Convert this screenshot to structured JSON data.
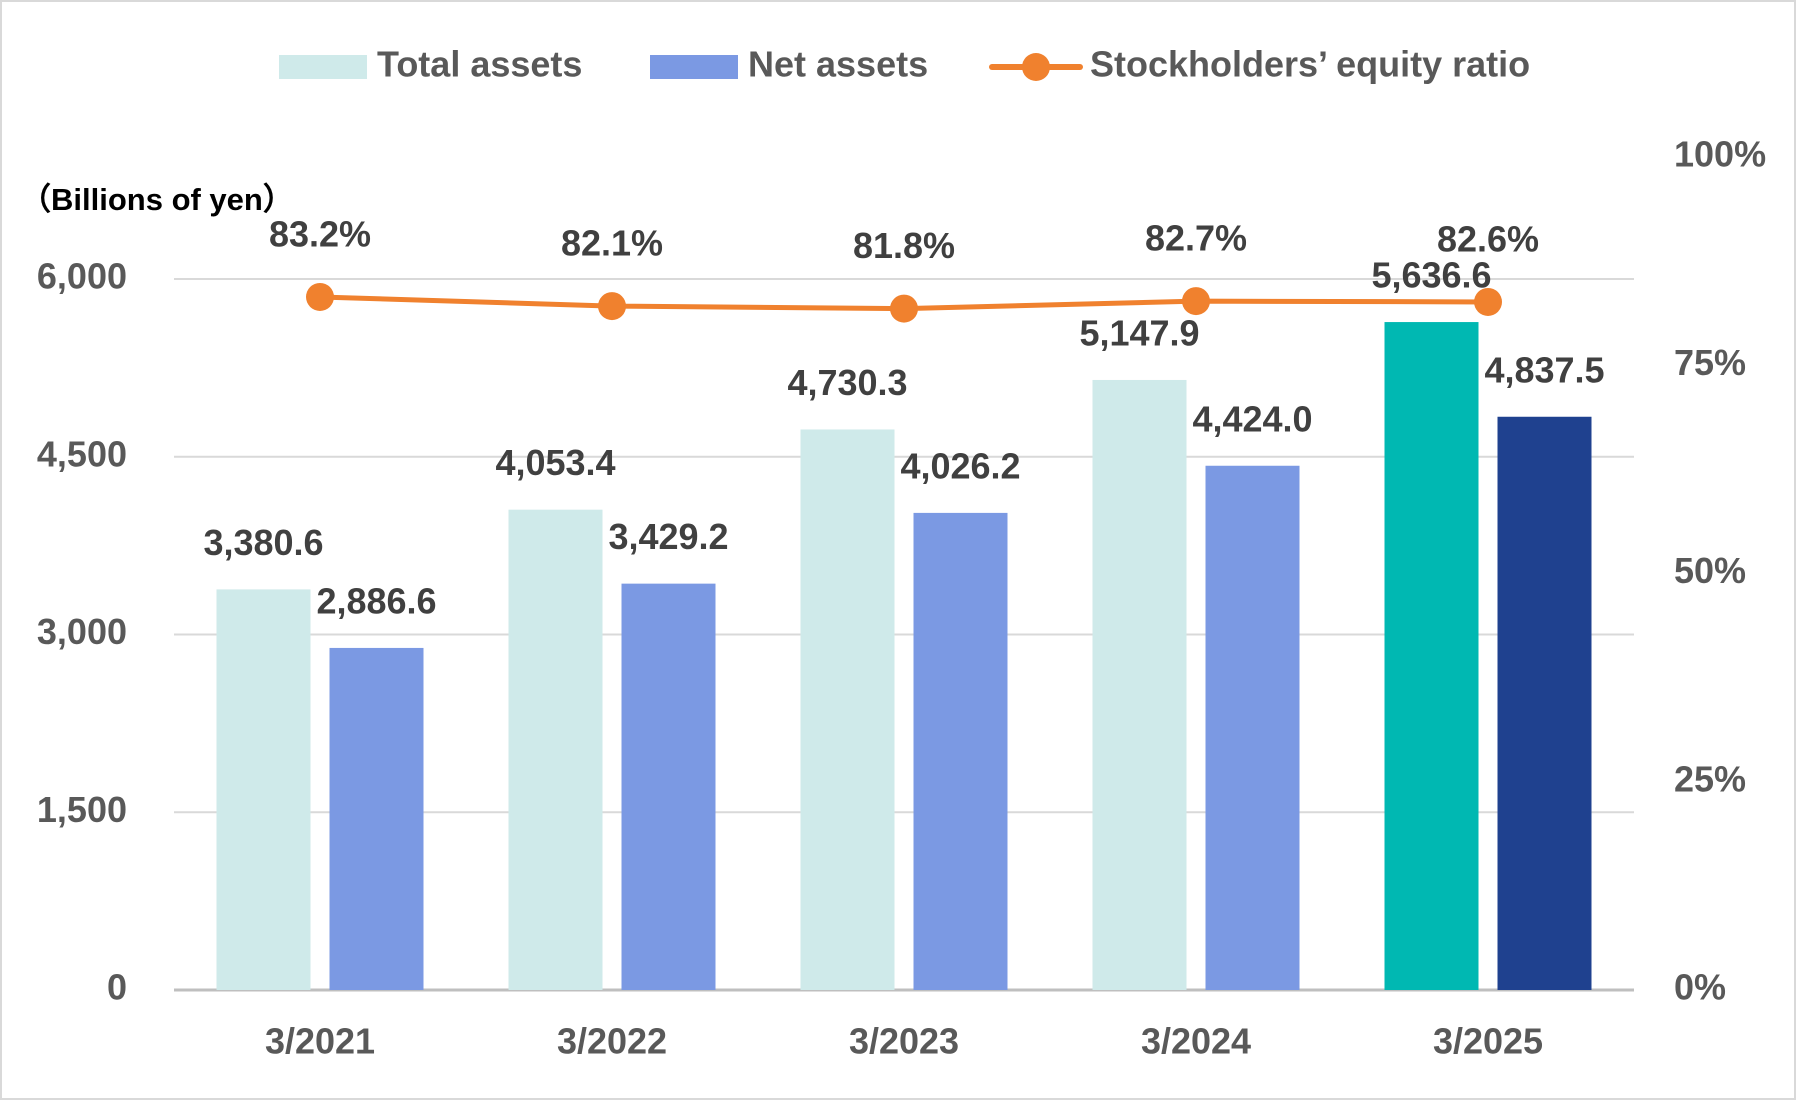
{
  "chart_data": {
    "type": "bar",
    "categories": [
      "3/2021",
      "3/2022",
      "3/2023",
      "3/2024",
      "3/2025"
    ],
    "series": [
      {
        "name": "Total assets",
        "type": "bar",
        "axis": "left",
        "values": [
          3380.6,
          4053.4,
          4730.3,
          5147.9,
          5636.6
        ],
        "labels": [
          "3,380.6",
          "4,053.4",
          "4,730.3",
          "5,147.9",
          "5,636.6"
        ],
        "color": "#CFEAEA",
        "highlight_color": "#00B8B2"
      },
      {
        "name": "Net assets",
        "type": "bar",
        "axis": "left",
        "values": [
          2886.6,
          3429.2,
          4026.2,
          4424.0,
          4837.5
        ],
        "labels": [
          "2,886.6",
          "3,429.2",
          "4,026.2",
          "4,424.0",
          "4,837.5"
        ],
        "color": "#7B99E3",
        "highlight_color": "#1F418F"
      },
      {
        "name": "Stockholders’ equity ratio",
        "type": "line",
        "axis": "right",
        "values": [
          83.2,
          82.1,
          81.8,
          82.7,
          82.6
        ],
        "labels": [
          "83.2%",
          "82.1%",
          "81.8%",
          "82.7%",
          "82.6%"
        ],
        "color": "#F0812E"
      }
    ],
    "left_axis": {
      "label": "（Billions of yen）",
      "ticks": [
        0,
        1500,
        3000,
        4500,
        6000
      ],
      "tick_labels": [
        "0",
        "1,500",
        "3,000",
        "4,500",
        "6,000"
      ],
      "ylim": [
        0,
        6000
      ]
    },
    "right_axis": {
      "ticks": [
        0,
        25,
        50,
        75,
        100
      ],
      "tick_labels": [
        "0%",
        "25%",
        "50%",
        "75%",
        "100%"
      ],
      "ylim": [
        0,
        100
      ]
    },
    "legend": {
      "position": "top"
    },
    "grid": true,
    "grid_color": "#d9d9d9",
    "axis_color": "#bfbfbf"
  }
}
